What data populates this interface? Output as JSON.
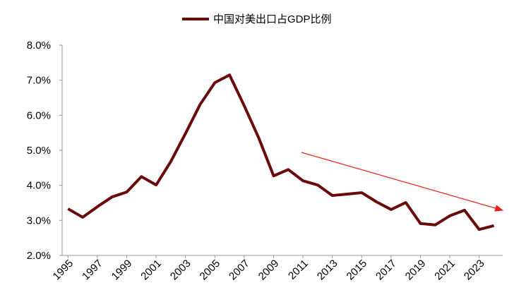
{
  "chart_data": {
    "type": "line",
    "x": [
      1995,
      1996,
      1997,
      1998,
      1999,
      2000,
      2001,
      2002,
      2003,
      2004,
      2005,
      2006,
      2007,
      2008,
      2009,
      2010,
      2011,
      2012,
      2013,
      2014,
      2015,
      2016,
      2017,
      2018,
      2019,
      2020,
      2021,
      2022,
      2023,
      2024
    ],
    "series": [
      {
        "name": "中国对美出口占GDP比例",
        "color": "#6b0a0a",
        "values": [
          3.33,
          3.09,
          3.39,
          3.67,
          3.81,
          4.25,
          4.01,
          4.68,
          5.48,
          6.31,
          6.93,
          7.15,
          6.27,
          5.34,
          4.27,
          4.45,
          4.13,
          4.01,
          3.71,
          3.75,
          3.79,
          3.53,
          3.31,
          3.51,
          2.91,
          2.87,
          3.13,
          3.29,
          2.74,
          2.85
        ]
      }
    ],
    "xlim": [
      1994.6,
      2024.6
    ],
    "xticks": [
      1995,
      1997,
      1999,
      2001,
      2003,
      2005,
      2007,
      2009,
      2011,
      2013,
      2015,
      2017,
      2019,
      2021,
      2023
    ],
    "ylim": [
      2,
      8
    ],
    "yticks": [
      {
        "value": 2,
        "label": "2.0%"
      },
      {
        "value": 3,
        "label": "3.0%"
      },
      {
        "value": 4,
        "label": "4.0%"
      },
      {
        "value": 5,
        "label": "5.0%"
      },
      {
        "value": 6,
        "label": "6.0%"
      },
      {
        "value": 7,
        "label": "7.0%"
      },
      {
        "value": 8,
        "label": "8.0%"
      }
    ],
    "legend": "top"
  }
}
